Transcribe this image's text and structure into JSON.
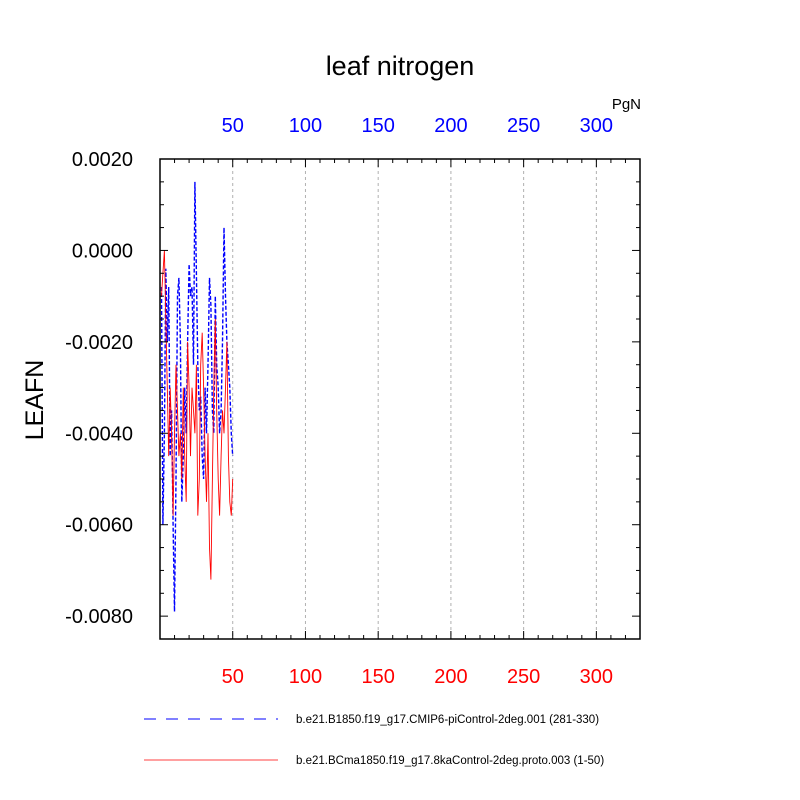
{
  "chart_data": {
    "type": "line",
    "title": "leaf nitrogen",
    "units": "PgN",
    "ylabel": "LEAFN",
    "xlabel": "",
    "xlim": [
      0,
      330
    ],
    "ylim": [
      -0.0085,
      0.002
    ],
    "x_ticks": [
      50,
      100,
      150,
      200,
      250,
      300
    ],
    "x_tick_labels": [
      "50",
      "100",
      "150",
      "200",
      "250",
      "300"
    ],
    "y_ticks": [
      0.002,
      0.0,
      -0.002,
      -0.004,
      -0.006,
      -0.008
    ],
    "y_tick_labels": [
      "0.0020",
      "0.0000",
      "-0.0020",
      "-0.0040",
      "-0.0060",
      "-0.0080"
    ],
    "grid": "vertical-dashed",
    "top_axis_color": "#0000ff",
    "bottom_axis_color": "#ff0000",
    "series": [
      {
        "name": "b.e21.B1850.f19_g17.CMIP6-piControl-2deg.001 (281-330)",
        "color": "#0000ff",
        "style": "dashed",
        "x": [
          1,
          2,
          3,
          4,
          5,
          6,
          7,
          8,
          9,
          10,
          11,
          12,
          13,
          14,
          15,
          16,
          17,
          18,
          19,
          20,
          21,
          22,
          23,
          24,
          25,
          26,
          27,
          28,
          29,
          30,
          31,
          32,
          33,
          34,
          35,
          36,
          37,
          38,
          39,
          40,
          41,
          42,
          43,
          44,
          45,
          46,
          47,
          48,
          49,
          50
        ],
        "y": [
          -0.0008,
          -0.006,
          -0.004,
          -0.0004,
          -0.002,
          -0.0008,
          -0.0045,
          -0.0035,
          -0.006,
          -0.0079,
          -0.005,
          -0.001,
          -0.0006,
          -0.002,
          -0.0055,
          -0.0045,
          -0.003,
          -0.004,
          -0.002,
          -0.0003,
          -0.001,
          -0.0008,
          -0.0025,
          0.0015,
          -0.0005,
          -0.0025,
          -0.0035,
          -0.0032,
          -0.0045,
          -0.005,
          -0.003,
          -0.004,
          -0.0025,
          -0.0006,
          -0.0012,
          -0.0035,
          -0.004,
          -0.001,
          -0.0025,
          -0.003,
          -0.004,
          -0.0035,
          -0.002,
          0.0005,
          -0.001,
          -0.002,
          -0.0025,
          -0.003,
          -0.004,
          -0.0045
        ]
      },
      {
        "name": "b.e21.BCma1850.f19_g17.8kaControl-2deg.proto.003 (1-50)",
        "color": "#ff0000",
        "style": "solid",
        "x": [
          1,
          2,
          3,
          4,
          5,
          6,
          7,
          8,
          9,
          10,
          11,
          12,
          13,
          14,
          15,
          16,
          17,
          18,
          19,
          20,
          21,
          22,
          23,
          24,
          25,
          26,
          27,
          28,
          29,
          30,
          31,
          32,
          33,
          34,
          35,
          36,
          37,
          38,
          39,
          40,
          41,
          42,
          43,
          44,
          45,
          46,
          47,
          48,
          49,
          50
        ],
        "y": [
          -0.001,
          -0.0005,
          0.0,
          -0.0015,
          -0.003,
          -0.0045,
          -0.003,
          -0.004,
          -0.0058,
          -0.004,
          -0.0025,
          -0.0035,
          -0.0045,
          -0.004,
          -0.005,
          -0.003,
          -0.0045,
          -0.0055,
          -0.002,
          -0.003,
          -0.0045,
          -0.003,
          -0.0035,
          -0.004,
          -0.0025,
          -0.0058,
          -0.005,
          -0.0025,
          -0.0018,
          -0.003,
          -0.0045,
          -0.0055,
          -0.004,
          -0.0065,
          -0.0072,
          -0.005,
          -0.003,
          -0.0015,
          -0.0035,
          -0.005,
          -0.0058,
          -0.0045,
          -0.0035,
          -0.004,
          -0.003,
          -0.002,
          -0.0045,
          -0.0055,
          -0.0058,
          -0.005
        ]
      }
    ]
  }
}
